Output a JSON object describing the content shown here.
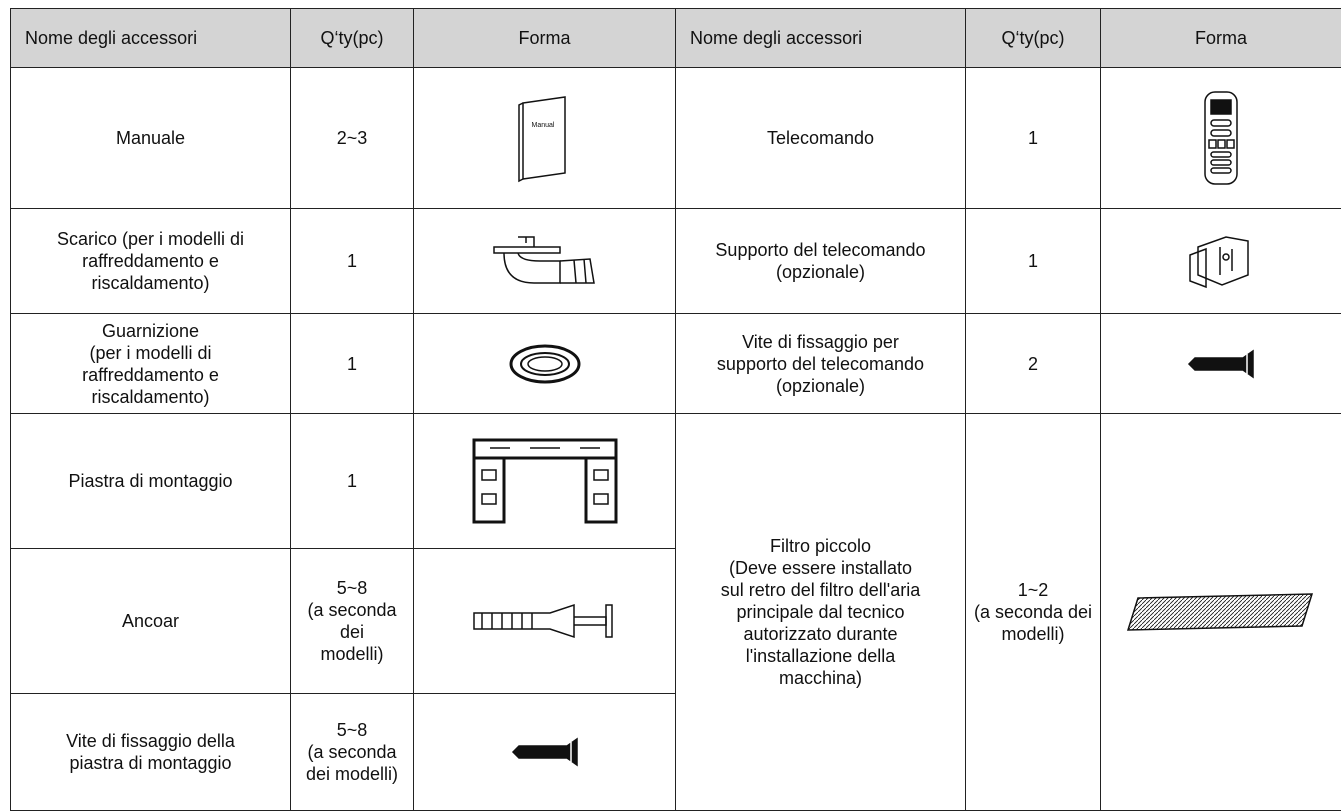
{
  "table": {
    "header": [
      "Nome degli accessori",
      "Q‘ty(pc)",
      "Forma",
      "Nome degli accessori",
      "Q‘ty(pc)",
      "Forma"
    ],
    "left_items": [
      {
        "name": "Manuale",
        "qty": "2~3"
      },
      {
        "name": "Scarico (per i modelli di\nraffreddamento e\nriscaldamento)",
        "qty": "1"
      },
      {
        "name": "Guarnizione\n(per i modelli di\nraffreddamento e\nriscaldamento)",
        "qty": "1"
      },
      {
        "name": "Piastra di montaggio",
        "qty": "1"
      },
      {
        "name": "Ancoar",
        "qty": "5~8\n(a seconda\ndei\nmodelli)"
      },
      {
        "name": "Vite di fissaggio della\npiastra di montaggio",
        "qty": "5~8\n(a seconda\ndei modelli)"
      }
    ],
    "right_items": [
      {
        "name": "Telecomando",
        "qty": "1"
      },
      {
        "name": "Supporto del telecomando\n(opzionale)",
        "qty": "1"
      },
      {
        "name": "Vite di fissaggio per\nsupporto del telecomando\n(opzionale)",
        "qty": "2"
      },
      {
        "name": "Filtro piccolo\n(Deve essere installato\nsul retro del filtro dell'aria\nprincipale dal tecnico\nautorizzato durante\nl'installazione della\nmacchina)",
        "qty": "1~2\n(a seconda dei\nmodelli)"
      }
    ],
    "manual_icon_label": "Manual"
  }
}
